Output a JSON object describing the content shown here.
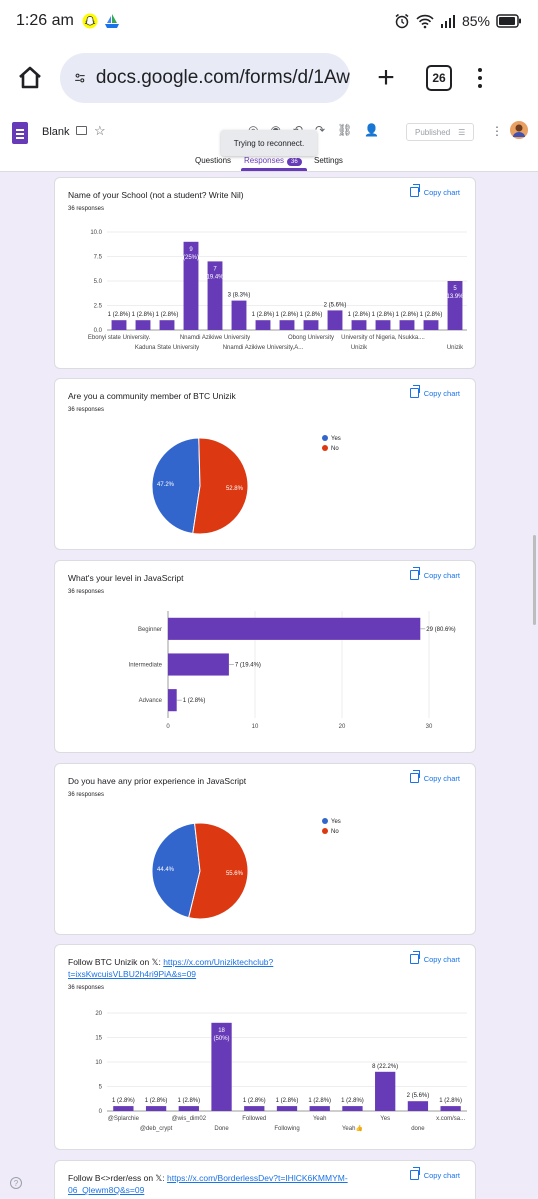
{
  "status": {
    "time": "1:26 am",
    "battery": "85%"
  },
  "browser": {
    "url": "docs.google.com/forms/d/1Aw",
    "tab_count": "26"
  },
  "form": {
    "title": "Blank",
    "publish_label": "Published",
    "toast": "Trying to reconnect.",
    "tabs": {
      "questions": "Questions",
      "responses": "Responses",
      "responses_count": "36",
      "settings": "Settings"
    }
  },
  "copy_chart_label": "Copy chart",
  "colors": {
    "bar": "#673ab7",
    "yes": "#3366cc",
    "no": "#dc3912",
    "link": "#1a73e8"
  },
  "questions": [
    {
      "title": "Name of your School (not a student? Write Nil)",
      "count": "36 responses",
      "chart_data": {
        "type": "bar",
        "values": [
          1,
          1,
          1,
          9,
          7,
          3,
          1,
          1,
          1,
          2,
          1,
          1,
          1,
          1,
          5
        ],
        "data_labels": [
          "1 (2.8%)",
          "1 (2.8%)",
          "1 (2.8%)",
          "9 (25%)",
          "7 (19.4%)",
          "3 (8.3%)",
          "1 (2.8%)",
          "1 (2.8%)",
          "1 (2.8%)",
          "2 (5.6%)",
          "1 (2.8%)",
          "1 (2.8%)",
          "1 (2.8%)",
          "1 (2.8%)",
          "5 (13.9%)"
        ],
        "x_tick_labels_row1": [
          "Ebonyi state University.",
          "",
          "",
          "",
          "Nnamdi Azikiwe University",
          "",
          "",
          "",
          "Obong University",
          "",
          "",
          "University of Nigeria, Nsukka....",
          "",
          "",
          ""
        ],
        "x_tick_labels_row2": [
          "",
          "",
          "Kaduna State University",
          "",
          "",
          "",
          "Nnamdi Azikiwe University,A...",
          "",
          "",
          "",
          "Unizik",
          "",
          "",
          "",
          "Unizik"
        ],
        "y_ticks": [
          "0.0",
          "2.5",
          "5.0",
          "7.5",
          "10.0"
        ],
        "ylim": [
          0,
          10
        ]
      }
    },
    {
      "title": "Are you a community member of BTC Unizik",
      "count": "36 responses",
      "chart_data": {
        "type": "pie",
        "slices": [
          {
            "label": "Yes",
            "value": 47.2,
            "text": "47.2%"
          },
          {
            "label": "No",
            "value": 52.8,
            "text": "52.8%"
          }
        ],
        "legend": "right"
      }
    },
    {
      "title": "What's your level in JavaScript",
      "count": "36 responses",
      "chart_data": {
        "type": "bar",
        "orientation": "horizontal",
        "categories": [
          "Beginner",
          "Intermediate",
          "Advance"
        ],
        "values": [
          29,
          7,
          1
        ],
        "data_labels": [
          "29 (80.6%)",
          "7 (19.4%)",
          "1 (2.8%)"
        ],
        "x_ticks": [
          "0",
          "10",
          "20",
          "30"
        ],
        "xlim": [
          0,
          30
        ]
      }
    },
    {
      "title": "Do you have any prior experience in JavaScript",
      "count": "36 responses",
      "chart_data": {
        "type": "pie",
        "slices": [
          {
            "label": "Yes",
            "value": 44.4,
            "text": "44.4%"
          },
          {
            "label": "No",
            "value": 55.6,
            "text": "55.6%"
          }
        ],
        "legend": "right"
      }
    },
    {
      "title_prefix": "Follow BTC Unizik on 𝕏: ",
      "title_link": "https://x.com/Uniziktechclub?t=ixsKwcuisVLBU2h4ri9PiA&s=09",
      "count": "36 responses",
      "chart_data": {
        "type": "bar",
        "values": [
          1,
          1,
          1,
          18,
          1,
          1,
          1,
          1,
          8,
          2,
          1
        ],
        "data_labels": [
          "1 (2.8%)",
          "1 (2.8%)",
          "1 (2.8%)",
          "18 (50%)",
          "1 (2.8%)",
          "1 (2.8%)",
          "1 (2.8%)",
          "1 (2.8%)",
          "8 (22.2%)",
          "2 (5.6%)",
          "1 (2.8%)"
        ],
        "x_tick_labels_row1": [
          "@Splarchie",
          "",
          "@wis_dim02",
          "",
          "Followed",
          "",
          "Yeah",
          "",
          "Yes",
          "",
          "x.com/sa..."
        ],
        "x_tick_labels_row2": [
          "",
          "@deb_crypt",
          "",
          "Done",
          "",
          "Following",
          "",
          "Yeah👍",
          "",
          "done",
          ""
        ],
        "y_ticks": [
          "0",
          "5",
          "10",
          "15",
          "20"
        ],
        "ylim": [
          0,
          20
        ]
      }
    },
    {
      "title_prefix": "Follow B<>rder/ess  on 𝕏: ",
      "title_link": "https://x.com/BorderlessDev?t=IHlCK6KMMYM-06_Qlewm8Q&s=09"
    }
  ]
}
